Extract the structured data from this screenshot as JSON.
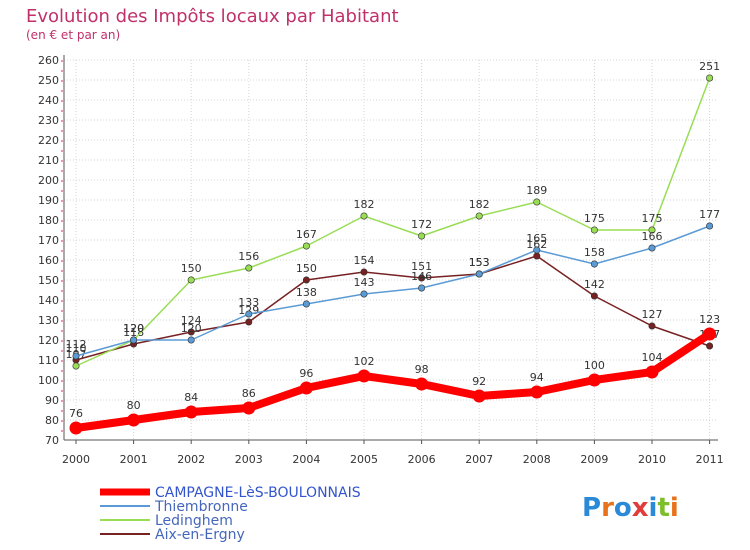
{
  "chart_data": {
    "type": "line",
    "title": "Evolution des Impôts locaux par Habitant",
    "subtitle": "(en € et par an)",
    "x": [
      "2000",
      "2001",
      "2002",
      "2003",
      "2004",
      "2005",
      "2006",
      "2007",
      "2008",
      "2009",
      "2010",
      "2011"
    ],
    "ylim": [
      70,
      260
    ],
    "yticks": [
      70,
      80,
      90,
      100,
      110,
      120,
      130,
      140,
      150,
      160,
      170,
      180,
      190,
      200,
      210,
      220,
      230,
      240,
      250,
      260
    ],
    "grid": true,
    "legend_position": "bottom-left",
    "series": [
      {
        "name": "CAMPAGNE-LèS-BOULONNAIS",
        "color": "#ff0000",
        "values": [
          76,
          80,
          84,
          86,
          96,
          102,
          98,
          92,
          94,
          100,
          104,
          123
        ]
      },
      {
        "name": "Thiembronne",
        "color": "#5b9bd5",
        "values": [
          112,
          120,
          120,
          133,
          138,
          143,
          146,
          153,
          165,
          158,
          166,
          177
        ]
      },
      {
        "name": "Ledinghem",
        "color": "#99dd55",
        "values": [
          107,
          120,
          150,
          156,
          167,
          182,
          172,
          182,
          189,
          175,
          175,
          251
        ]
      },
      {
        "name": "Aix-en-Ergny",
        "color": "#772222",
        "values": [
          110,
          118,
          124,
          129,
          150,
          154,
          151,
          153,
          162,
          142,
          127,
          117
        ]
      }
    ]
  },
  "brand": {
    "logo_text": "Proxiti",
    "letter_colors": [
      "#2a8ad8",
      "#e8721c",
      "#2a8ad8",
      "#e23b3b",
      "#2a8ad8",
      "#7dbf2a",
      "#e8721c"
    ]
  }
}
